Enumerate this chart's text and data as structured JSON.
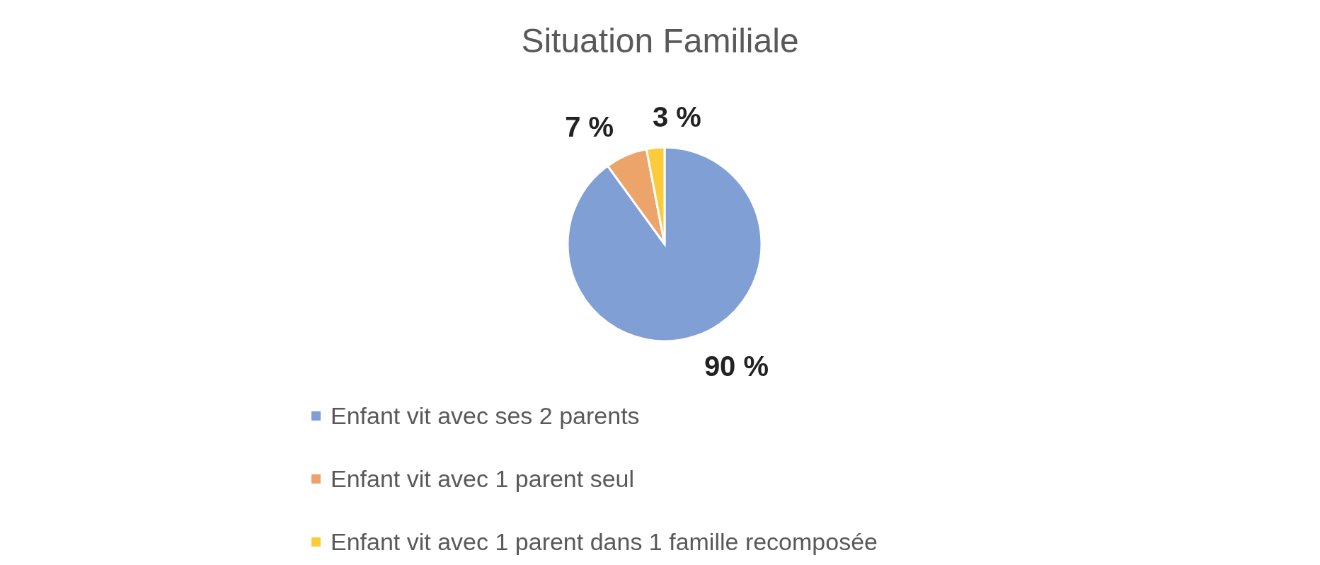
{
  "chart_data": {
    "type": "pie",
    "title": "Situation Familiale",
    "categories": [
      "Enfant vit avec ses 2 parents",
      "Enfant vit avec 1 parent seul",
      "Enfant vit avec 1 parent dans 1 famille recomposée"
    ],
    "values": [
      90,
      7,
      3
    ],
    "colors": [
      "#7f9fd5",
      "#eda46a",
      "#fbcb3a"
    ],
    "value_labels": [
      "90 %",
      "7 %",
      "3 %"
    ],
    "legend": "bottom"
  }
}
